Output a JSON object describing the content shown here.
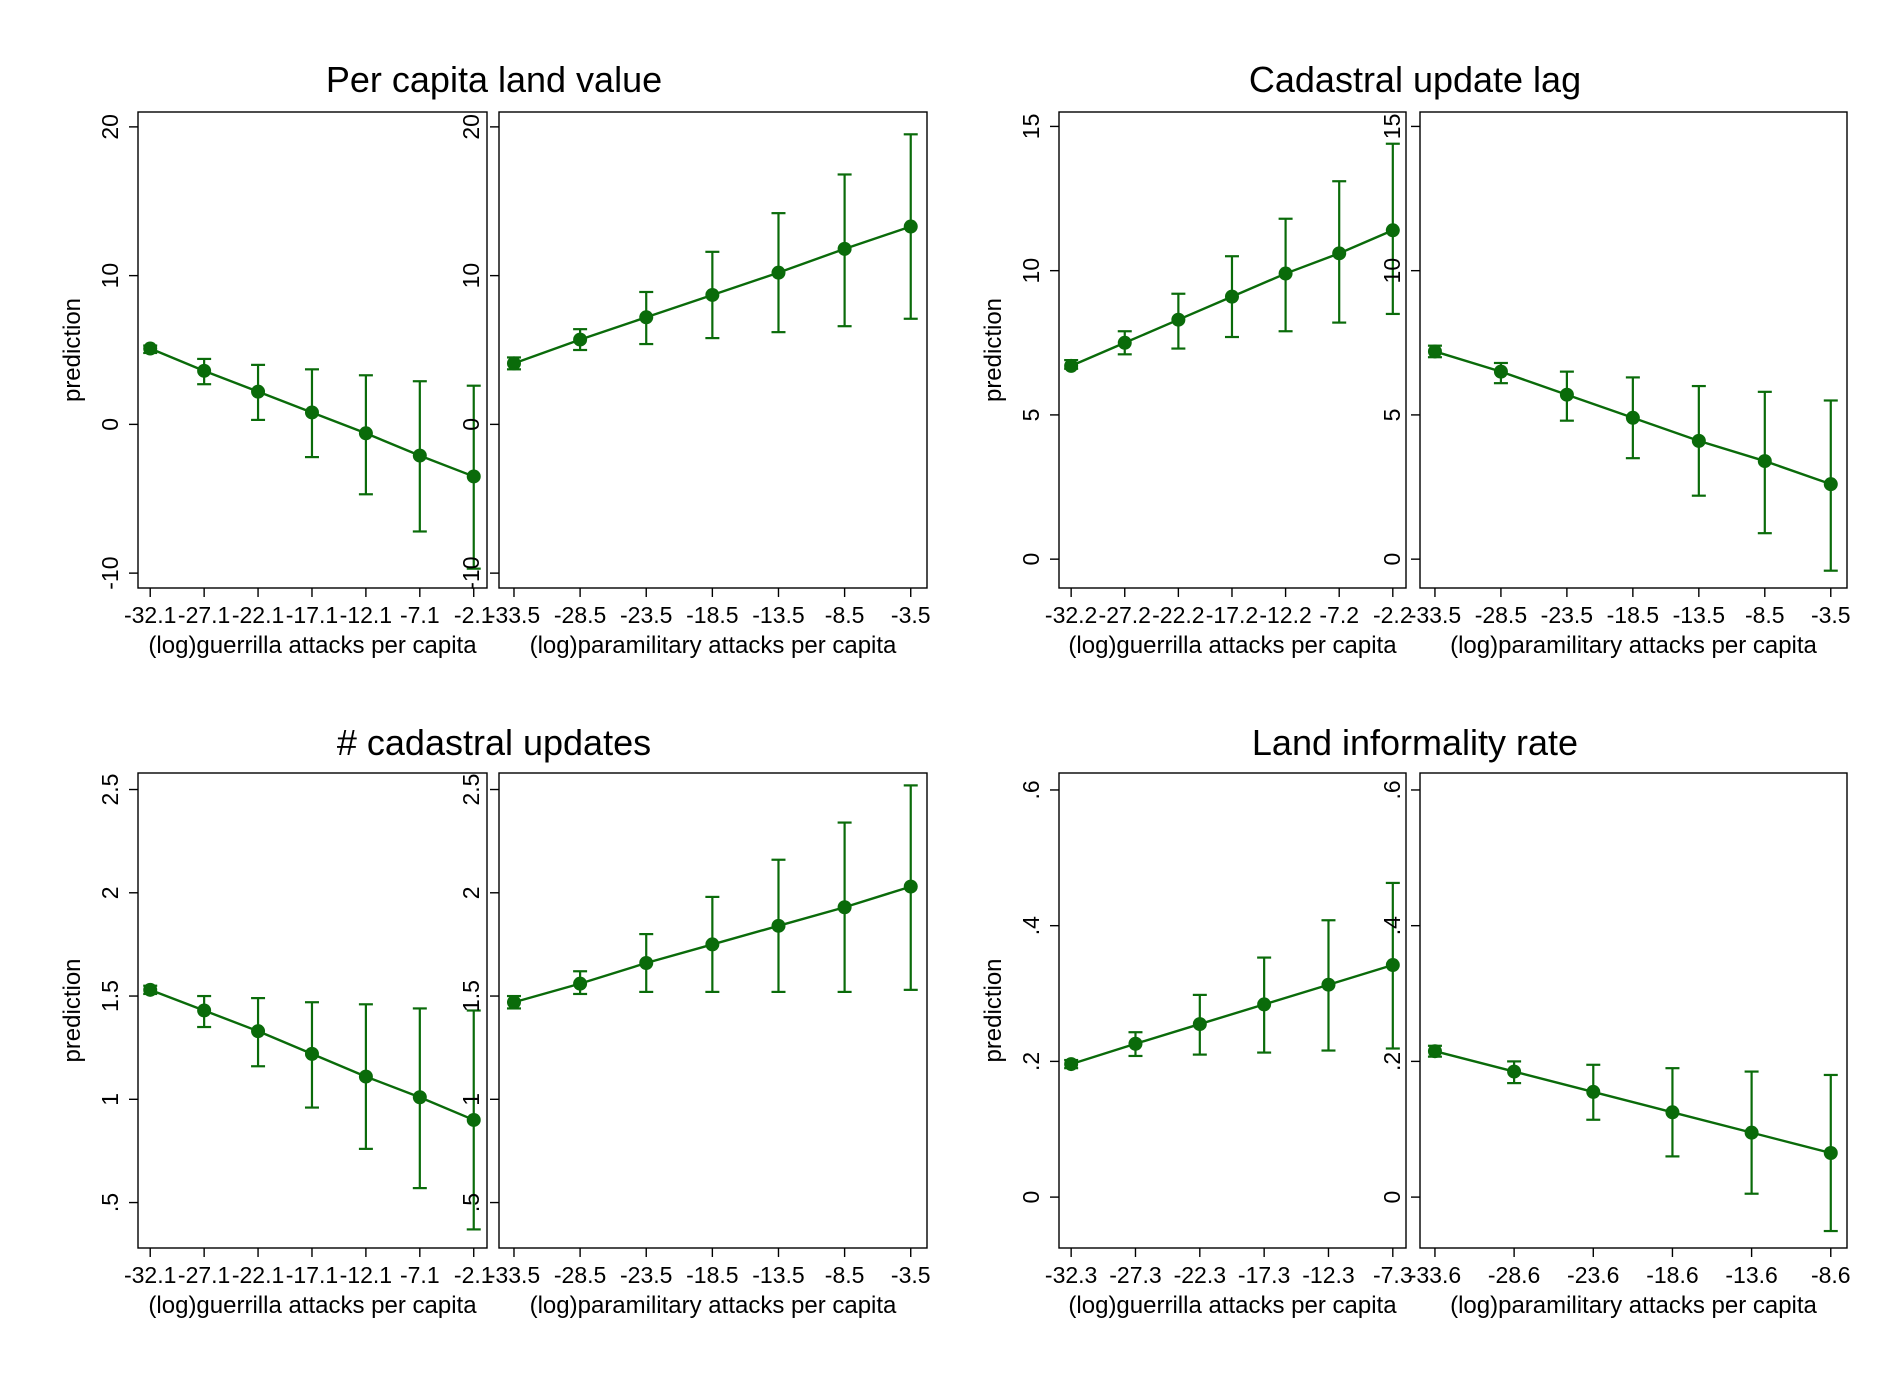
{
  "colors": {
    "series": "#0a6b0a",
    "frame": "#000000",
    "background": "#ffffff"
  },
  "chart_data": [
    {
      "type": "line",
      "title": "Per capita land value",
      "grid": false,
      "panels": [
        {
          "xlabel": "(log)guerrilla attacks per capita",
          "ylabel": "prediction",
          "x": [
            -32.1,
            -27.1,
            -22.1,
            -17.1,
            -12.1,
            -7.1,
            -2.1
          ],
          "x_tick_labels": [
            "-32.1",
            "-27.1",
            "-22.1",
            "-17.1",
            "-12.1",
            "-7.1",
            "-2.1"
          ],
          "y_ticks": [
            -10,
            0,
            10,
            20
          ],
          "y_tick_labels": [
            "-10",
            "0",
            "10",
            "20"
          ],
          "ylim": [
            -11,
            21
          ],
          "y": [
            5.1,
            3.6,
            2.2,
            0.8,
            -0.6,
            -2.1,
            -3.5
          ],
          "ci_low": [
            4.8,
            2.7,
            0.3,
            -2.2,
            -4.7,
            -7.2,
            -9.7
          ],
          "ci_high": [
            5.3,
            4.4,
            4.0,
            3.7,
            3.3,
            2.9,
            2.6
          ]
        },
        {
          "xlabel": "(log)paramilitary attacks per capita",
          "ylabel": "",
          "x": [
            -33.5,
            -28.5,
            -23.5,
            -18.5,
            -13.5,
            -8.5,
            -3.5
          ],
          "x_tick_labels": [
            "-33.5",
            "-28.5",
            "-23.5",
            "-18.5",
            "-13.5",
            "-8.5",
            "-3.5"
          ],
          "y_ticks": [
            -10,
            0,
            10,
            20
          ],
          "y_tick_labels": [
            "-10",
            "0",
            "10",
            "20"
          ],
          "ylim": [
            -11,
            21
          ],
          "y": [
            4.1,
            5.7,
            7.2,
            8.7,
            10.2,
            11.8,
            13.3
          ],
          "ci_low": [
            3.7,
            5.0,
            5.4,
            5.8,
            6.2,
            6.6,
            7.1
          ],
          "ci_high": [
            4.5,
            6.4,
            8.9,
            11.6,
            14.2,
            16.8,
            19.5
          ]
        }
      ]
    },
    {
      "type": "line",
      "title": "Cadastral update lag",
      "grid": false,
      "panels": [
        {
          "xlabel": "(log)guerrilla attacks per capita",
          "ylabel": "prediction",
          "x": [
            -32.2,
            -27.2,
            -22.2,
            -17.2,
            -12.2,
            -7.2,
            -2.2
          ],
          "x_tick_labels": [
            "-32.2",
            "-27.2",
            "-22.2",
            "-17.2",
            "-12.2",
            "-7.2",
            "-2.2"
          ],
          "y_ticks": [
            0,
            5,
            10,
            15
          ],
          "y_tick_labels": [
            "0",
            "5",
            "10",
            "15"
          ],
          "ylim": [
            -1,
            15.5
          ],
          "y": [
            6.7,
            7.5,
            8.3,
            9.1,
            9.9,
            10.6,
            11.4
          ],
          "ci_low": [
            6.6,
            7.1,
            7.3,
            7.7,
            7.9,
            8.2,
            8.5
          ],
          "ci_high": [
            6.9,
            7.9,
            9.2,
            10.5,
            11.8,
            13.1,
            14.4
          ]
        },
        {
          "xlabel": "(log)paramilitary attacks per capita",
          "ylabel": "",
          "x": [
            -33.5,
            -28.5,
            -23.5,
            -18.5,
            -13.5,
            -8.5,
            -3.5
          ],
          "x_tick_labels": [
            "-33.5",
            "-28.5",
            "-23.5",
            "-18.5",
            "-13.5",
            "-8.5",
            "-3.5"
          ],
          "y_ticks": [
            0,
            5,
            10,
            15
          ],
          "y_tick_labels": [
            "0",
            "5",
            "10",
            "15"
          ],
          "ylim": [
            -1,
            15.5
          ],
          "y": [
            7.2,
            6.5,
            5.7,
            4.9,
            4.1,
            3.4,
            2.6
          ],
          "ci_low": [
            7.0,
            6.1,
            4.8,
            3.5,
            2.2,
            0.9,
            -0.4
          ],
          "ci_high": [
            7.4,
            6.8,
            6.5,
            6.3,
            6.0,
            5.8,
            5.5
          ]
        }
      ]
    },
    {
      "type": "line",
      "title": "# cadastral updates",
      "grid": false,
      "panels": [
        {
          "xlabel": "(log)guerrilla attacks per capita",
          "ylabel": "prediction",
          "x": [
            -32.1,
            -27.1,
            -22.1,
            -17.1,
            -12.1,
            -7.1,
            -2.1
          ],
          "x_tick_labels": [
            "-32.1",
            "-27.1",
            "-22.1",
            "-17.1",
            "-12.1",
            "-7.1",
            "-2.1"
          ],
          "y_ticks": [
            0.5,
            1,
            1.5,
            2,
            2.5
          ],
          "y_tick_labels": [
            ".5",
            "1",
            "1.5",
            "2",
            "2.5"
          ],
          "ylim": [
            0.28,
            2.58
          ],
          "y": [
            1.53,
            1.43,
            1.33,
            1.22,
            1.11,
            1.01,
            0.9
          ],
          "ci_low": [
            1.51,
            1.35,
            1.16,
            0.96,
            0.76,
            0.57,
            0.37
          ],
          "ci_high": [
            1.55,
            1.5,
            1.49,
            1.47,
            1.46,
            1.44,
            1.43
          ]
        },
        {
          "xlabel": "(log)paramilitary attacks per capita",
          "ylabel": "",
          "x": [
            -33.5,
            -28.5,
            -23.5,
            -18.5,
            -13.5,
            -8.5,
            -3.5
          ],
          "x_tick_labels": [
            "-33.5",
            "-28.5",
            "-23.5",
            "-18.5",
            "-13.5",
            "-8.5",
            "-3.5"
          ],
          "y_ticks": [
            0.5,
            1,
            1.5,
            2,
            2.5
          ],
          "y_tick_labels": [
            ".5",
            "1",
            "1.5",
            "2",
            "2.5"
          ],
          "ylim": [
            0.28,
            2.58
          ],
          "y": [
            1.47,
            1.56,
            1.66,
            1.75,
            1.84,
            1.93,
            2.03
          ],
          "ci_low": [
            1.44,
            1.51,
            1.52,
            1.52,
            1.52,
            1.52,
            1.53
          ],
          "ci_high": [
            1.5,
            1.62,
            1.8,
            1.98,
            2.16,
            2.34,
            2.52
          ]
        }
      ]
    },
    {
      "type": "line",
      "title": "Land informality rate",
      "grid": false,
      "panels": [
        {
          "xlabel": "(log)guerrilla attacks per capita",
          "ylabel": "prediction",
          "x": [
            -32.3,
            -27.3,
            -22.3,
            -17.3,
            -12.3,
            -7.3
          ],
          "x_tick_labels": [
            "-32.3",
            "-27.3",
            "-22.3",
            "-17.3",
            "-12.3",
            "-7.3"
          ],
          "y_ticks": [
            0,
            0.2,
            0.4,
            0.6
          ],
          "y_tick_labels": [
            "0",
            ".2",
            ".4",
            ".6"
          ],
          "ylim": [
            -0.075,
            0.625
          ],
          "y": [
            0.196,
            0.226,
            0.255,
            0.284,
            0.313,
            0.342
          ],
          "ci_low": [
            0.19,
            0.208,
            0.21,
            0.213,
            0.216,
            0.219
          ],
          "ci_high": [
            0.202,
            0.243,
            0.298,
            0.353,
            0.408,
            0.463
          ]
        },
        {
          "xlabel": "(log)paramilitary attacks per capita",
          "ylabel": "",
          "x": [
            -33.6,
            -28.6,
            -23.6,
            -18.6,
            -13.6,
            -8.6
          ],
          "x_tick_labels": [
            "-33.6",
            "-28.6",
            "-23.6",
            "-18.6",
            "-13.6",
            "-8.6"
          ],
          "y_ticks": [
            0,
            0.2,
            0.4,
            0.6
          ],
          "y_tick_labels": [
            "0",
            ".2",
            ".4",
            ".6"
          ],
          "ylim": [
            -0.075,
            0.625
          ],
          "y": [
            0.215,
            0.185,
            0.155,
            0.125,
            0.095,
            0.065
          ],
          "ci_low": [
            0.207,
            0.168,
            0.114,
            0.06,
            0.005,
            -0.05
          ],
          "ci_high": [
            0.223,
            0.2,
            0.195,
            0.19,
            0.185,
            0.18
          ]
        }
      ]
    }
  ]
}
